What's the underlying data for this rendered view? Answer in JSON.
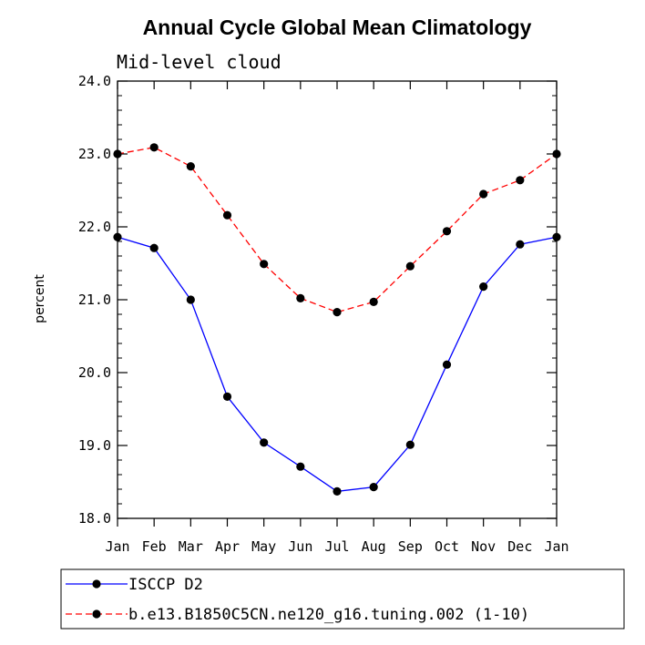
{
  "chart_data": {
    "type": "line",
    "title": "Annual Cycle Global Mean Climatology",
    "subtitle": "Mid-level cloud",
    "ylabel": "percent",
    "xlabel": "",
    "categories": [
      "Jan",
      "Feb",
      "Mar",
      "Apr",
      "May",
      "Jun",
      "Jul",
      "Aug",
      "Sep",
      "Oct",
      "Nov",
      "Dec",
      "Jan"
    ],
    "ylim": [
      18.0,
      24.0
    ],
    "yticks": [
      "18.0",
      "19.0",
      "20.0",
      "21.0",
      "22.0",
      "23.0",
      "24.0"
    ],
    "grid": false,
    "legend_position": "bottom",
    "series": [
      {
        "name": "ISCCP D2",
        "color": "#0000ff",
        "dash": "solid",
        "values": [
          21.86,
          21.71,
          21.0,
          19.67,
          19.04,
          18.71,
          18.37,
          18.43,
          19.01,
          20.11,
          21.18,
          21.76,
          21.86
        ]
      },
      {
        "name": "b.e13.B1850C5CN.ne120_g16.tuning.002 (1-10)",
        "color": "#ff0000",
        "dash": "dashed",
        "values": [
          23.0,
          23.09,
          22.83,
          22.16,
          21.49,
          21.02,
          20.83,
          20.97,
          21.46,
          21.94,
          22.45,
          22.64,
          23.0
        ]
      }
    ]
  }
}
